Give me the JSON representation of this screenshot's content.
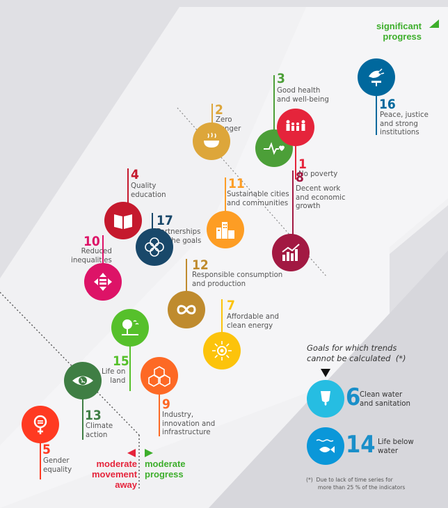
{
  "legend": {
    "significant": "significant\nprogress",
    "moderate_progress": "moderate\nprogress",
    "moderate_away": "moderate\nmovement\naway"
  },
  "colors": {
    "goal1": "#e5243b",
    "goal2": "#dda63a",
    "goal3": "#4c9f38",
    "goal4": "#c5192d",
    "goal5": "#ff3a21",
    "goal6": "#26bde2",
    "goal7": "#fcc30b",
    "goal8": "#a21942",
    "goal9": "#fd6925",
    "goal10": "#dd1367",
    "goal11": "#fd9d24",
    "goal12": "#bf8b2e",
    "goal13": "#3f7e44",
    "goal14": "#0a97d9",
    "goal15": "#56c02b",
    "goal16": "#00689d",
    "goal17": "#19486a",
    "progress_green": "#3dae2b",
    "away_red": "#e5243b"
  },
  "goals": [
    {
      "num": "1",
      "label": "No poverty",
      "icon": "family-icon"
    },
    {
      "num": "2",
      "label": "Zero\nhunger",
      "icon": "bowl-icon"
    },
    {
      "num": "3",
      "label": "Good health\nand well-being",
      "icon": "heartbeat-icon"
    },
    {
      "num": "4",
      "label": "Quality\neducation",
      "icon": "book-icon"
    },
    {
      "num": "5",
      "label": "Gender\nequality",
      "icon": "gender-icon"
    },
    {
      "num": "7",
      "label": "Affordable and\nclean energy",
      "icon": "sun-icon"
    },
    {
      "num": "8",
      "label": "Decent work\nand economic\ngrowth",
      "icon": "growth-chart-icon"
    },
    {
      "num": "9",
      "label": "Industry,\ninnovation and\ninfrastructure",
      "icon": "cubes-icon"
    },
    {
      "num": "10",
      "label": "Reduced\ninequalities",
      "icon": "arrows-equal-icon"
    },
    {
      "num": "11",
      "label": "Sustainable cities\nand communities",
      "icon": "city-icon"
    },
    {
      "num": "12",
      "label": "Responsible consumption\nand production",
      "icon": "infinity-icon"
    },
    {
      "num": "13",
      "label": "Climate\naction",
      "icon": "eye-globe-icon"
    },
    {
      "num": "15",
      "label": "Life on\nland",
      "icon": "tree-icon"
    },
    {
      "num": "16",
      "label": "Peace, justice\nand strong\ninstitutions",
      "icon": "dove-icon"
    },
    {
      "num": "17",
      "label": "Partnerships\nfor the goals",
      "icon": "flower-icon"
    }
  ],
  "not_calculated": {
    "title": "Goals for which trends\ncannot be calculated  (*)",
    "items": [
      {
        "num": "6",
        "label": "Clean water\nand sanitation",
        "icon": "water-drop-icon"
      },
      {
        "num": "14",
        "label": "Life below\nwater",
        "icon": "fish-icon"
      }
    ],
    "footnote": "(*)  Due to lack of time series for\n       more than 25 % of the indicators"
  }
}
